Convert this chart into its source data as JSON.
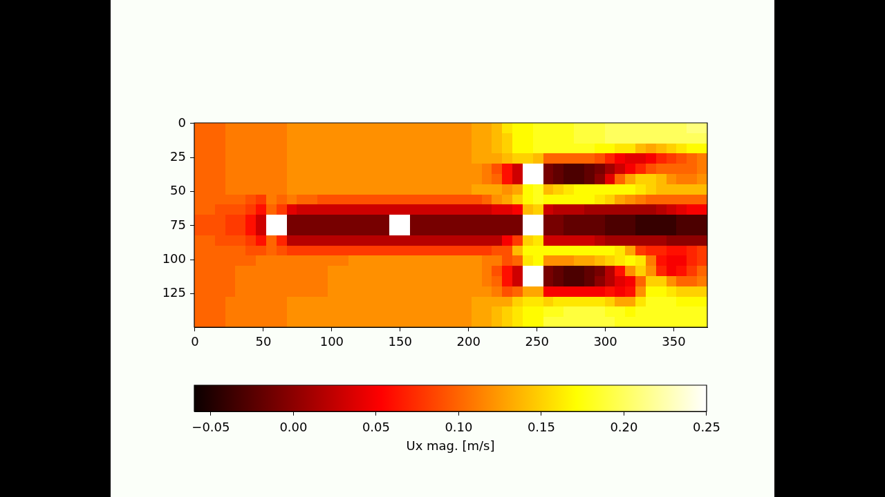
{
  "chart_data": {
    "type": "heatmap",
    "x": [
      3.25,
      10.75,
      18.25,
      25.75,
      33.25,
      40.75,
      48.25,
      55.75,
      63.25,
      70.75,
      78.25,
      85.75,
      93.25,
      100.75,
      108.25,
      115.75,
      123.25,
      130.75,
      138.25,
      145.75,
      153.25,
      160.75,
      168.25,
      175.75,
      183.25,
      190.75,
      198.25,
      205.75,
      213.25,
      220.75,
      228.25,
      235.75,
      243.25,
      250.75,
      258.25,
      265.75,
      273.25,
      280.75,
      288.25,
      295.75,
      303.25,
      310.75,
      318.25,
      325.75,
      333.25,
      340.75,
      348.25,
      355.75,
      363.25,
      370.75
    ],
    "y": [
      3.25,
      10.75,
      18.25,
      25.75,
      33.25,
      40.75,
      48.25,
      55.75,
      63.25,
      70.75,
      78.25,
      85.75,
      93.25,
      100.75,
      108.25,
      115.75,
      123.25,
      130.75,
      138.25,
      145.75
    ],
    "xlim": [
      -0.5,
      374.5
    ],
    "xticks": [
      0,
      50,
      100,
      150,
      200,
      250,
      300,
      350
    ],
    "ylim": [
      149.5,
      -0.5
    ],
    "yticks": [
      0,
      25,
      50,
      75,
      100,
      125
    ],
    "clim": [
      -0.06,
      0.25
    ],
    "cticks": [
      {
        "value": -0.05,
        "label": "−0.05"
      },
      {
        "value": 0,
        "label": "0.00"
      },
      {
        "value": 0.05,
        "label": "0.05"
      },
      {
        "value": 0.1,
        "label": "0.10"
      },
      {
        "value": 0.15,
        "label": "0.15"
      },
      {
        "value": 0.2,
        "label": "0.20"
      },
      {
        "value": 0.25,
        "label": "0.25"
      }
    ],
    "clabel": "Ux mag. [m/s]",
    "cells": [
      [
        0.1,
        0.1,
        0.1,
        0.11,
        0.11,
        0.11,
        0.11,
        0.11,
        0.11,
        0.12,
        0.12,
        0.12,
        0.12,
        0.12,
        0.12,
        0.12,
        0.12,
        0.12,
        0.12,
        0.12,
        0.12,
        0.12,
        0.12,
        0.12,
        0.12,
        0.12,
        0.12,
        0.13,
        0.13,
        0.14,
        0.16,
        0.17,
        0.17,
        0.18,
        0.18,
        0.18,
        0.18,
        0.19,
        0.19,
        0.19,
        0.2,
        0.2,
        0.2,
        0.2,
        0.2,
        0.2,
        0.2,
        0.2,
        0.21,
        0.21
      ],
      [
        0.1,
        0.1,
        0.1,
        0.11,
        0.11,
        0.11,
        0.11,
        0.11,
        0.11,
        0.12,
        0.12,
        0.12,
        0.12,
        0.12,
        0.12,
        0.12,
        0.12,
        0.12,
        0.12,
        0.12,
        0.12,
        0.12,
        0.12,
        0.12,
        0.12,
        0.12,
        0.12,
        0.13,
        0.13,
        0.14,
        0.15,
        0.17,
        0.17,
        0.18,
        0.18,
        0.18,
        0.18,
        0.19,
        0.19,
        0.19,
        0.2,
        0.2,
        0.2,
        0.2,
        0.2,
        0.2,
        0.2,
        0.2,
        0.2,
        0.2
      ],
      [
        0.1,
        0.1,
        0.1,
        0.11,
        0.11,
        0.11,
        0.11,
        0.11,
        0.11,
        0.12,
        0.12,
        0.12,
        0.12,
        0.12,
        0.12,
        0.12,
        0.12,
        0.12,
        0.12,
        0.12,
        0.12,
        0.12,
        0.12,
        0.12,
        0.12,
        0.12,
        0.12,
        0.13,
        0.13,
        0.14,
        0.15,
        0.17,
        0.17,
        0.18,
        0.18,
        0.18,
        0.18,
        0.18,
        0.18,
        0.17,
        0.17,
        0.16,
        0.16,
        0.14,
        0.13,
        0.14,
        0.15,
        0.16,
        0.17,
        0.17
      ],
      [
        0.1,
        0.1,
        0.1,
        0.11,
        0.11,
        0.11,
        0.11,
        0.11,
        0.11,
        0.12,
        0.12,
        0.12,
        0.12,
        0.12,
        0.12,
        0.12,
        0.12,
        0.12,
        0.12,
        0.12,
        0.12,
        0.12,
        0.12,
        0.12,
        0.12,
        0.12,
        0.12,
        0.13,
        0.13,
        0.13,
        0.14,
        0.15,
        0.15,
        0.14,
        0.1,
        0.1,
        0.1,
        0.1,
        0.1,
        0.09,
        0.07,
        0.05,
        0.04,
        0.04,
        0.05,
        0.07,
        0.08,
        0.09,
        0.1,
        0.11
      ],
      [
        0.1,
        0.1,
        0.1,
        0.11,
        0.11,
        0.11,
        0.11,
        0.11,
        0.11,
        0.12,
        0.12,
        0.12,
        0.12,
        0.12,
        0.12,
        0.12,
        0.12,
        0.12,
        0.12,
        0.12,
        0.12,
        0.12,
        0.12,
        0.12,
        0.12,
        0.12,
        0.12,
        0.12,
        0.11,
        0.09,
        0.06,
        0.03,
        null,
        null,
        -0.01,
        -0.02,
        -0.03,
        -0.03,
        -0.02,
        -0.01,
        0.01,
        0.03,
        0.05,
        0.07,
        0.09,
        0.1,
        0.1,
        0.1,
        0.1,
        0.11
      ],
      [
        0.1,
        0.1,
        0.1,
        0.11,
        0.11,
        0.11,
        0.11,
        0.11,
        0.11,
        0.12,
        0.12,
        0.12,
        0.12,
        0.12,
        0.12,
        0.12,
        0.12,
        0.12,
        0.12,
        0.12,
        0.12,
        0.12,
        0.12,
        0.12,
        0.12,
        0.12,
        0.12,
        0.12,
        0.11,
        0.1,
        0.06,
        0.03,
        null,
        null,
        -0.01,
        -0.02,
        -0.03,
        -0.03,
        -0.02,
        0.0,
        0.04,
        0.1,
        0.13,
        0.15,
        0.15,
        0.14,
        0.12,
        0.11,
        0.11,
        0.12
      ],
      [
        0.1,
        0.1,
        0.1,
        0.11,
        0.11,
        0.11,
        0.11,
        0.11,
        0.11,
        0.12,
        0.12,
        0.12,
        0.12,
        0.12,
        0.12,
        0.12,
        0.12,
        0.12,
        0.12,
        0.12,
        0.12,
        0.12,
        0.12,
        0.12,
        0.12,
        0.12,
        0.12,
        0.13,
        0.13,
        0.13,
        0.12,
        0.13,
        0.17,
        0.18,
        0.14,
        0.15,
        0.16,
        0.17,
        0.17,
        0.17,
        0.17,
        0.17,
        0.17,
        0.16,
        0.15,
        0.14,
        0.14,
        0.14,
        0.14,
        0.14
      ],
      [
        0.1,
        0.1,
        0.1,
        0.1,
        0.1,
        0.09,
        0.08,
        0.11,
        0.1,
        0.11,
        0.1,
        0.1,
        0.09,
        0.09,
        0.09,
        0.09,
        0.09,
        0.09,
        0.09,
        0.09,
        0.09,
        0.09,
        0.09,
        0.09,
        0.09,
        0.09,
        0.09,
        0.09,
        0.1,
        0.12,
        0.13,
        0.15,
        0.17,
        0.18,
        0.17,
        0.17,
        0.17,
        0.17,
        0.17,
        0.16,
        0.15,
        0.13,
        0.12,
        0.11,
        0.1,
        0.1,
        0.1,
        0.1,
        0.1,
        0.1
      ],
      [
        0.1,
        0.1,
        0.09,
        0.09,
        0.09,
        0.08,
        0.06,
        0.1,
        0.08,
        0.04,
        0.03,
        0.03,
        0.03,
        0.03,
        0.03,
        0.03,
        0.03,
        0.03,
        0.03,
        0.03,
        0.03,
        0.03,
        0.03,
        0.03,
        0.03,
        0.03,
        0.03,
        0.03,
        0.03,
        0.04,
        0.04,
        0.05,
        0.14,
        0.15,
        0.03,
        0.02,
        0.02,
        0.02,
        0.01,
        0.01,
        0.01,
        0.01,
        0.01,
        0.01,
        0.01,
        0.02,
        0.03,
        0.04,
        0.05,
        0.05
      ],
      [
        0.09,
        0.09,
        0.09,
        0.08,
        0.08,
        0.06,
        0.03,
        null,
        null,
        -0.01,
        -0.01,
        -0.01,
        -0.01,
        -0.01,
        -0.01,
        -0.01,
        -0.01,
        -0.01,
        -0.01,
        null,
        null,
        -0.01,
        -0.01,
        -0.01,
        -0.01,
        -0.01,
        -0.01,
        -0.01,
        -0.01,
        -0.01,
        -0.01,
        -0.01,
        null,
        null,
        -0.01,
        -0.01,
        -0.02,
        -0.02,
        -0.02,
        -0.02,
        -0.03,
        -0.03,
        -0.03,
        -0.04,
        -0.04,
        -0.04,
        -0.04,
        -0.03,
        -0.03,
        -0.03
      ],
      [
        0.09,
        0.09,
        0.09,
        0.08,
        0.08,
        0.06,
        0.03,
        null,
        null,
        -0.01,
        -0.01,
        -0.01,
        -0.01,
        -0.01,
        -0.01,
        -0.01,
        -0.01,
        -0.01,
        -0.01,
        null,
        null,
        -0.01,
        -0.01,
        -0.01,
        -0.01,
        -0.01,
        -0.01,
        -0.01,
        -0.01,
        -0.01,
        -0.01,
        -0.01,
        null,
        null,
        -0.01,
        -0.01,
        -0.02,
        -0.02,
        -0.02,
        -0.02,
        -0.03,
        -0.03,
        -0.03,
        -0.04,
        -0.04,
        -0.04,
        -0.04,
        -0.03,
        -0.03,
        -0.03
      ],
      [
        0.1,
        0.1,
        0.09,
        0.09,
        0.09,
        0.08,
        0.06,
        0.1,
        0.07,
        0.02,
        0.02,
        0.02,
        0.02,
        0.02,
        0.02,
        0.02,
        0.02,
        0.02,
        0.02,
        0.02,
        0.02,
        0.02,
        0.02,
        0.02,
        0.02,
        0.02,
        0.02,
        0.02,
        0.02,
        0.02,
        0.05,
        0.08,
        0.15,
        0.16,
        0.03,
        0.03,
        0.03,
        0.03,
        0.03,
        0.02,
        0.01,
        0.01,
        0.01,
        0.01,
        0.01,
        0.01,
        0.0,
        0.0,
        0.0,
        0.0
      ],
      [
        0.1,
        0.1,
        0.1,
        0.1,
        0.1,
        0.09,
        0.09,
        0.1,
        0.09,
        0.08,
        0.08,
        0.08,
        0.08,
        0.08,
        0.08,
        0.08,
        0.08,
        0.08,
        0.08,
        0.08,
        0.08,
        0.08,
        0.08,
        0.08,
        0.08,
        0.08,
        0.08,
        0.08,
        0.08,
        0.09,
        0.09,
        0.14,
        0.17,
        0.17,
        0.17,
        0.17,
        0.17,
        0.17,
        0.17,
        0.17,
        0.17,
        0.16,
        0.13,
        0.08,
        0.07,
        0.07,
        0.06,
        0.06,
        0.07,
        0.08
      ],
      [
        0.1,
        0.1,
        0.1,
        0.1,
        0.1,
        0.1,
        0.11,
        0.11,
        0.11,
        0.11,
        0.11,
        0.11,
        0.11,
        0.11,
        0.11,
        0.12,
        0.12,
        0.12,
        0.12,
        0.12,
        0.12,
        0.12,
        0.12,
        0.12,
        0.12,
        0.12,
        0.12,
        0.12,
        0.11,
        0.11,
        0.09,
        0.1,
        0.16,
        0.17,
        0.12,
        0.12,
        0.12,
        0.13,
        0.13,
        0.14,
        0.15,
        0.16,
        0.17,
        0.16,
        0.11,
        0.06,
        0.05,
        0.05,
        0.07,
        0.08
      ],
      [
        0.1,
        0.1,
        0.1,
        0.1,
        0.11,
        0.11,
        0.11,
        0.11,
        0.11,
        0.11,
        0.11,
        0.11,
        0.11,
        0.12,
        0.12,
        0.12,
        0.12,
        0.12,
        0.12,
        0.12,
        0.12,
        0.12,
        0.12,
        0.12,
        0.12,
        0.12,
        0.12,
        0.12,
        0.11,
        0.09,
        0.06,
        0.03,
        null,
        null,
        -0.01,
        -0.02,
        -0.03,
        -0.03,
        -0.02,
        -0.01,
        0.02,
        0.06,
        0.12,
        0.15,
        0.12,
        0.07,
        0.05,
        0.06,
        0.08,
        0.1
      ],
      [
        0.1,
        0.1,
        0.1,
        0.1,
        0.11,
        0.11,
        0.11,
        0.11,
        0.11,
        0.11,
        0.11,
        0.11,
        0.11,
        0.12,
        0.12,
        0.12,
        0.12,
        0.12,
        0.12,
        0.12,
        0.12,
        0.12,
        0.12,
        0.12,
        0.12,
        0.12,
        0.12,
        0.12,
        0.11,
        0.1,
        0.06,
        0.03,
        null,
        null,
        -0.01,
        -0.02,
        -0.03,
        -0.03,
        -0.02,
        0.0,
        0.02,
        0.04,
        0.05,
        0.1,
        0.15,
        0.15,
        0.12,
        0.1,
        0.1,
        0.11
      ],
      [
        0.1,
        0.1,
        0.1,
        0.1,
        0.11,
        0.11,
        0.11,
        0.11,
        0.11,
        0.11,
        0.11,
        0.11,
        0.11,
        0.12,
        0.12,
        0.12,
        0.12,
        0.12,
        0.12,
        0.12,
        0.12,
        0.12,
        0.12,
        0.12,
        0.12,
        0.12,
        0.12,
        0.12,
        0.12,
        0.11,
        0.09,
        0.1,
        0.13,
        0.13,
        0.05,
        0.05,
        0.05,
        0.05,
        0.05,
        0.05,
        0.06,
        0.05,
        0.06,
        0.12,
        0.17,
        0.17,
        0.16,
        0.15,
        0.15,
        0.15
      ],
      [
        0.1,
        0.1,
        0.1,
        0.11,
        0.11,
        0.11,
        0.11,
        0.11,
        0.11,
        0.12,
        0.12,
        0.12,
        0.12,
        0.12,
        0.12,
        0.12,
        0.12,
        0.12,
        0.12,
        0.12,
        0.12,
        0.12,
        0.12,
        0.12,
        0.12,
        0.12,
        0.12,
        0.13,
        0.13,
        0.13,
        0.13,
        0.15,
        0.16,
        0.16,
        0.15,
        0.16,
        0.16,
        0.16,
        0.16,
        0.16,
        0.15,
        0.13,
        0.13,
        0.16,
        0.18,
        0.18,
        0.18,
        0.17,
        0.17,
        0.17
      ],
      [
        0.1,
        0.1,
        0.1,
        0.11,
        0.11,
        0.11,
        0.11,
        0.11,
        0.11,
        0.12,
        0.12,
        0.12,
        0.12,
        0.12,
        0.12,
        0.12,
        0.12,
        0.12,
        0.12,
        0.12,
        0.12,
        0.12,
        0.12,
        0.12,
        0.12,
        0.12,
        0.12,
        0.13,
        0.13,
        0.14,
        0.15,
        0.16,
        0.17,
        0.17,
        0.18,
        0.18,
        0.19,
        0.19,
        0.19,
        0.19,
        0.18,
        0.18,
        0.17,
        0.18,
        0.18,
        0.18,
        0.18,
        0.18,
        0.18,
        0.18
      ],
      [
        0.1,
        0.1,
        0.1,
        0.11,
        0.11,
        0.11,
        0.11,
        0.11,
        0.11,
        0.12,
        0.12,
        0.12,
        0.12,
        0.12,
        0.12,
        0.12,
        0.12,
        0.12,
        0.12,
        0.12,
        0.12,
        0.12,
        0.12,
        0.12,
        0.12,
        0.12,
        0.12,
        0.13,
        0.13,
        0.14,
        0.15,
        0.16,
        0.17,
        0.17,
        0.19,
        0.19,
        0.19,
        0.19,
        0.19,
        0.19,
        0.19,
        0.18,
        0.18,
        0.18,
        0.18,
        0.18,
        0.18,
        0.18,
        0.18,
        0.18
      ]
    ]
  }
}
